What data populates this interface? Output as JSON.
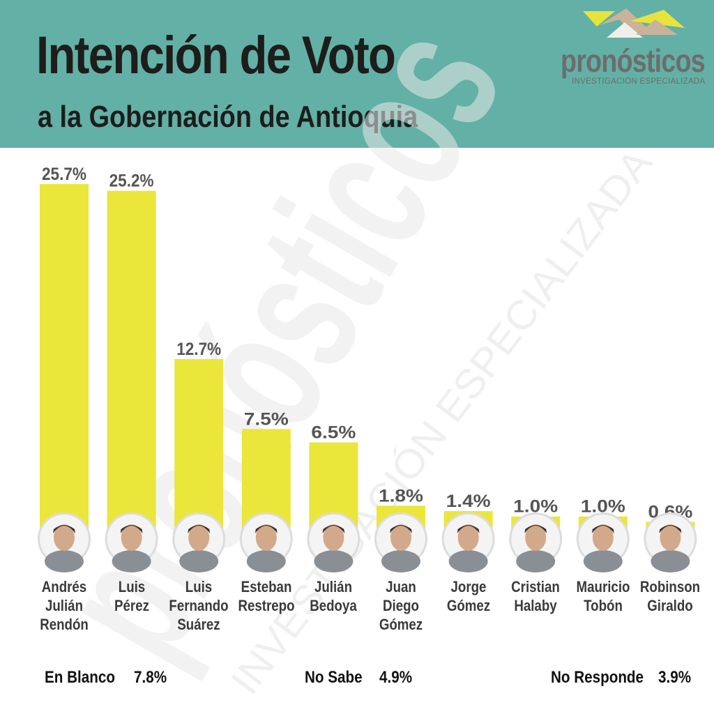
{
  "header": {
    "title": "Intención de Voto",
    "subtitle": "a la Gobernación de Antioquia"
  },
  "logo": {
    "name": "pronósticos",
    "tagline": "INVESTIGACIÓN ESPECIALIZADA"
  },
  "watermark": {
    "word": "pronósticos",
    "tagline": "INVESTIGACIÓN ESPECIALIZADA"
  },
  "colors": {
    "header_bg": "#63b0a6",
    "bar": "#ebe63a",
    "title_text": "#1d1d1b",
    "label_text": "#555555"
  },
  "chart_data": {
    "type": "bar",
    "categories": [
      [
        "Andrés",
        "Julián",
        "Rendón"
      ],
      [
        "Luis",
        "Pérez"
      ],
      [
        "Luis",
        "Fernando",
        "Suárez"
      ],
      [
        "Esteban",
        "Restrepo"
      ],
      [
        "Julián",
        "Bedoya"
      ],
      [
        "Juan",
        "Diego",
        "Gómez"
      ],
      [
        "Jorge",
        "Gómez"
      ],
      [
        "Cristian",
        "Halaby"
      ],
      [
        "Mauricio",
        "Tobón"
      ],
      [
        "Robinson",
        "Giraldo"
      ]
    ],
    "values": [
      25.7,
      25.2,
      12.7,
      7.5,
      6.5,
      1.8,
      1.4,
      1.0,
      1.0,
      0.6
    ],
    "value_labels": [
      "25.7%",
      "25.2%",
      "12.7%",
      "7.5%",
      "6.5%",
      "1.8%",
      "1.4%",
      "1.0%",
      "1.0%",
      "0.6%"
    ],
    "ylim": [
      0,
      25.7
    ],
    "grid": false,
    "legend": "none"
  },
  "extras": [
    {
      "label": "En Blanco",
      "value": "7.8%"
    },
    {
      "label": "No Sabe",
      "value": "4.9%"
    },
    {
      "label": "No Responde",
      "value": "3.9%"
    }
  ]
}
